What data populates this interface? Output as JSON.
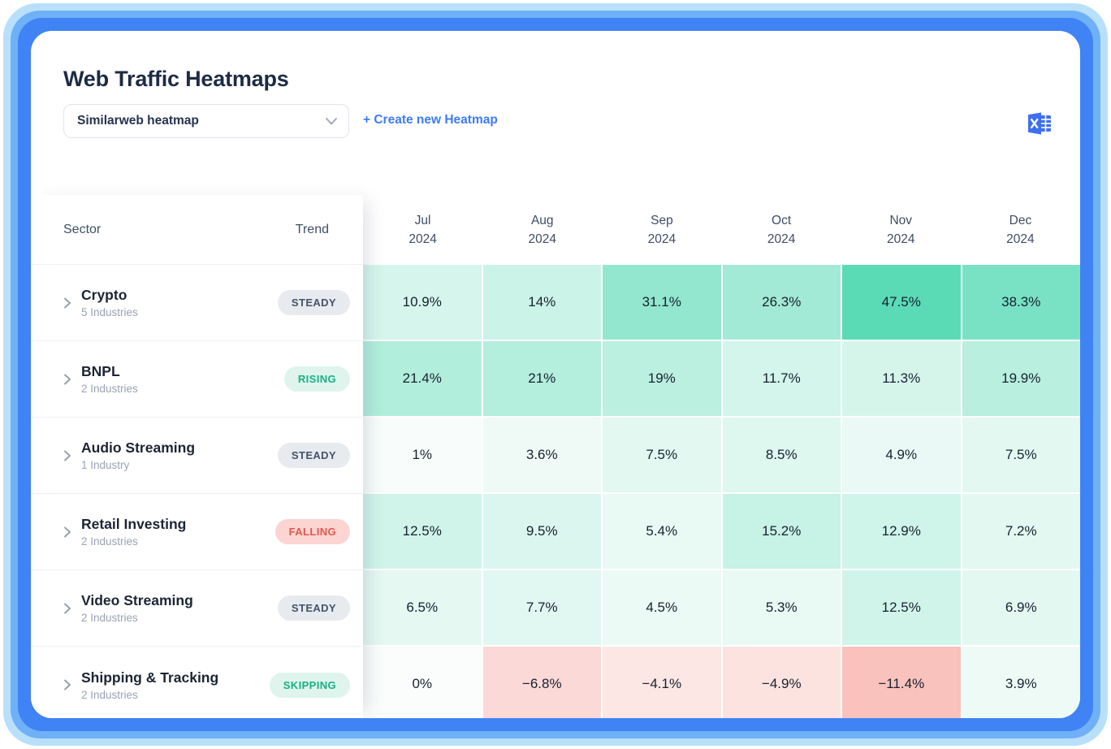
{
  "page": {
    "title": "Web Traffic Heatmaps"
  },
  "controls": {
    "select_value": "Similarweb heatmap",
    "create_label": "+ Create new Heatmap"
  },
  "table": {
    "sector_header": "Sector",
    "trend_header": "Trend",
    "months": [
      {
        "month": "Jul",
        "year": "2024"
      },
      {
        "month": "Aug",
        "year": "2024"
      },
      {
        "month": "Sep",
        "year": "2024"
      },
      {
        "month": "Oct",
        "year": "2024"
      },
      {
        "month": "Nov",
        "year": "2024"
      },
      {
        "month": "Dec",
        "year": "2024"
      }
    ],
    "rows": [
      {
        "sector": "Crypto",
        "industries": "5 Industries",
        "trend": "STEADY",
        "trend_type": "steady",
        "values": [
          10.9,
          14,
          31.1,
          26.3,
          47.5,
          38.3
        ],
        "labels": [
          "10.9%",
          "14%",
          "31.1%",
          "26.3%",
          "47.5%",
          "38.3%"
        ]
      },
      {
        "sector": "BNPL",
        "industries": "2 Industries",
        "trend": "RISING",
        "trend_type": "rising",
        "values": [
          21.4,
          21,
          19,
          11.7,
          11.3,
          19.9
        ],
        "labels": [
          "21.4%",
          "21%",
          "19%",
          "11.7%",
          "11.3%",
          "19.9%"
        ]
      },
      {
        "sector": "Audio Streaming",
        "industries": "1 Industry",
        "trend": "STEADY",
        "trend_type": "steady",
        "values": [
          1,
          3.6,
          7.5,
          8.5,
          4.9,
          7.5
        ],
        "labels": [
          "1%",
          "3.6%",
          "7.5%",
          "8.5%",
          "4.9%",
          "7.5%"
        ]
      },
      {
        "sector": "Retail Investing",
        "industries": "2 Industries",
        "trend": "FALLING",
        "trend_type": "falling",
        "values": [
          12.5,
          9.5,
          5.4,
          15.2,
          12.9,
          7.2
        ],
        "labels": [
          "12.5%",
          "9.5%",
          "5.4%",
          "15.2%",
          "12.9%",
          "7.2%"
        ]
      },
      {
        "sector": "Video Streaming",
        "industries": "2 Industries",
        "trend": "STEADY",
        "trend_type": "steady",
        "values": [
          6.5,
          7.7,
          4.5,
          5.3,
          12.5,
          6.9
        ],
        "labels": [
          "6.5%",
          "7.7%",
          "4.5%",
          "5.3%",
          "12.5%",
          "6.9%"
        ]
      },
      {
        "sector": "Shipping & Tracking",
        "industries": "2 Industries",
        "trend": "SKIPPING",
        "trend_type": "skipping",
        "values": [
          0,
          -6.8,
          -4.1,
          -4.9,
          -11.4,
          3.9
        ],
        "labels": [
          "0%",
          "−6.8%",
          "−4.1%",
          "−4.9%",
          "−11.4%",
          "3.9%"
        ]
      }
    ]
  },
  "colors": {
    "accent_blue": "#3d7bf7",
    "frame_blue": "#3f83f4",
    "heat_positive_max": "#5adbb6",
    "heat_positive_zero": "#fbfdfc",
    "heat_negative_max": "#f9c2bc",
    "heat_negative_zero": "#fefcfc",
    "positive_domain_max": 47.5,
    "negative_domain_max": 11.4,
    "badge_steady_bg": "#e7eaef",
    "badge_steady_text": "#44536b",
    "badge_rising_bg": "#def4ed",
    "badge_rising_text": "#18b183",
    "badge_falling_bg": "#fcd4d1",
    "badge_falling_text": "#dd5a50",
    "badge_skipping_bg": "#def4ed",
    "badge_skipping_text": "#18b183"
  },
  "chart_data": {
    "type": "heatmap",
    "title": "Web Traffic Heatmaps",
    "columns": [
      "Jul 2024",
      "Aug 2024",
      "Sep 2024",
      "Oct 2024",
      "Nov 2024",
      "Dec 2024"
    ],
    "unit": "%",
    "rows": [
      {
        "name": "Crypto",
        "trend": "STEADY",
        "values": [
          10.9,
          14,
          31.1,
          26.3,
          47.5,
          38.3
        ]
      },
      {
        "name": "BNPL",
        "trend": "RISING",
        "values": [
          21.4,
          21,
          19,
          11.7,
          11.3,
          19.9
        ]
      },
      {
        "name": "Audio Streaming",
        "trend": "STEADY",
        "values": [
          1,
          3.6,
          7.5,
          8.5,
          4.9,
          7.5
        ]
      },
      {
        "name": "Retail Investing",
        "trend": "FALLING",
        "values": [
          12.5,
          9.5,
          5.4,
          15.2,
          12.9,
          7.2
        ]
      },
      {
        "name": "Video Streaming",
        "trend": "STEADY",
        "values": [
          6.5,
          7.7,
          4.5,
          5.3,
          12.5,
          6.9
        ]
      },
      {
        "name": "Shipping & Tracking",
        "trend": "SKIPPING",
        "values": [
          0,
          -6.8,
          -4.1,
          -4.9,
          -11.4,
          3.9
        ]
      }
    ]
  }
}
